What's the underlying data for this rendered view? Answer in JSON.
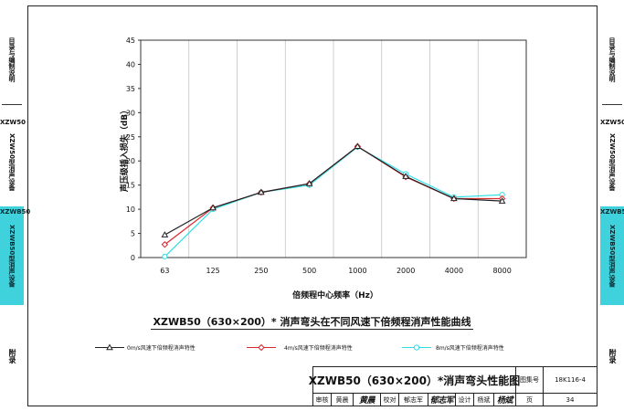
{
  "colors": {
    "series_black": "#222222",
    "series_red": "#d9262c",
    "series_cyan": "#2ee0e6",
    "tab_cyan": "#3fd1dc"
  },
  "sidebar_left": {
    "seg1": "目录与编制说明",
    "seg2_head": "XZW50",
    "seg2": "XZW50型消声设备",
    "seg3_head": "XZWB50",
    "seg3": "XZWB50型消声设备",
    "appendix": "附录"
  },
  "sidebar_right": {
    "seg1": "目录与编制说明",
    "seg2_head": "XZW50",
    "seg2": "XZW50型消声设备",
    "seg3_head": "XZWB50",
    "seg3": "XZWB50型消声设备",
    "appendix": "附录"
  },
  "chart_caption": "XZWB50（630×200）* 消声弯头在不同风速下倍频程消声性能曲线",
  "chart_data": {
    "type": "line",
    "title": "XZWB50（630×200）* 消声弯头在不同风速下倍频程消声性能曲线",
    "xlabel": "倍频程中心频率（Hz）",
    "ylabel": "声压级插入损失（dB）",
    "categories": [
      "63",
      "125",
      "250",
      "500",
      "1000",
      "2000",
      "4000",
      "8000"
    ],
    "ylim": [
      0,
      45
    ],
    "yticks": [
      0,
      5,
      10,
      15,
      20,
      25,
      30,
      35,
      40,
      45
    ],
    "grid": "vertical",
    "legend_placement": "bottom",
    "series": [
      {
        "name": "0m/s风速下倍频程消声特性",
        "marker": "triangle",
        "color": "#222222",
        "values": [
          4.7,
          10.3,
          13.5,
          15.3,
          23.0,
          16.8,
          12.2,
          11.7
        ]
      },
      {
        "name": "4m/s风速下倍频程消声特性",
        "marker": "diamond",
        "color": "#d9262c",
        "values": [
          2.7,
          10.3,
          13.5,
          15.3,
          23.0,
          16.7,
          12.2,
          12.2
        ]
      },
      {
        "name": "8m/s风速下倍频程消声特性",
        "marker": "circle",
        "color": "#2ee0e6",
        "values": [
          0.2,
          10.0,
          13.5,
          15.0,
          22.9,
          17.3,
          12.5,
          13.0
        ]
      }
    ]
  },
  "title_block": {
    "drawing_title": "XZWB50（630×200）*消声弯头性能图",
    "atlas_label": "图集号",
    "atlas_no": "18K116-4",
    "page_label": "页",
    "page_no": "34",
    "review_label": "审核",
    "review_name": "黄晨",
    "review_sig": "黄晨",
    "check_label": "校对",
    "check_name": "郁志军",
    "check_sig": "郁志军",
    "design_label": "设计",
    "design_name": "杨斌",
    "design_sig": "杨斌"
  }
}
